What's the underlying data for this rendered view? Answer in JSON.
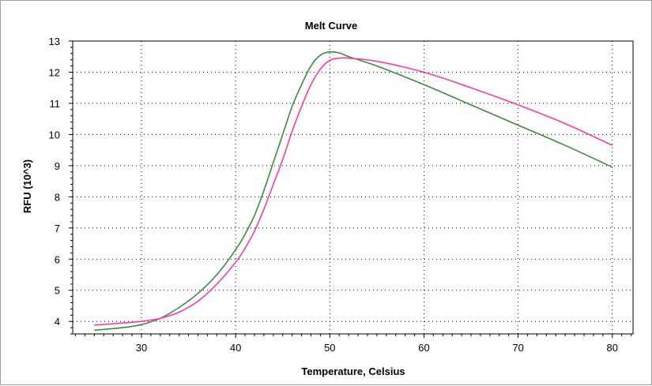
{
  "chart_data": {
    "type": "line",
    "title": "Melt Curve",
    "xlabel": "Temperature, Celsius",
    "ylabel": "RFU (10^3)",
    "xlim": [
      22.7,
      82.2
    ],
    "ylim": [
      3.6,
      13.0
    ],
    "xticks": [
      30,
      40,
      50,
      60,
      70,
      80
    ],
    "yticks": [
      4,
      5,
      6,
      7,
      8,
      9,
      10,
      11,
      12,
      13
    ],
    "grid": true,
    "colors": {
      "green": "#3c8c3c",
      "pink": "#ff3aa8"
    },
    "series": [
      {
        "color": "#3c8c3c",
        "x": [
          25,
          28,
          30,
          32,
          34,
          36,
          38,
          40,
          41,
          42,
          43,
          44,
          45,
          46,
          47,
          48,
          49,
          50,
          51,
          52,
          55,
          60,
          65,
          70,
          75,
          80
        ],
        "y": [
          3.72,
          3.8,
          3.9,
          4.1,
          4.45,
          4.9,
          5.5,
          6.3,
          6.8,
          7.4,
          8.2,
          9.1,
          10.0,
          10.9,
          11.6,
          12.2,
          12.55,
          12.65,
          12.62,
          12.5,
          12.2,
          11.6,
          10.95,
          10.3,
          9.65,
          8.95
        ]
      },
      {
        "color": "#ff3aa8",
        "x": [
          25,
          28,
          30,
          32,
          34,
          36,
          38,
          40,
          41,
          42,
          43,
          44,
          45,
          46,
          47,
          48,
          49,
          50,
          51,
          52,
          55,
          60,
          65,
          70,
          75,
          80
        ],
        "y": [
          3.88,
          3.95,
          4.0,
          4.1,
          4.3,
          4.65,
          5.2,
          5.9,
          6.35,
          6.9,
          7.6,
          8.4,
          9.2,
          10.1,
          10.9,
          11.6,
          12.1,
          12.38,
          12.45,
          12.45,
          12.35,
          12.0,
          11.5,
          10.95,
          10.35,
          9.65
        ]
      }
    ]
  }
}
